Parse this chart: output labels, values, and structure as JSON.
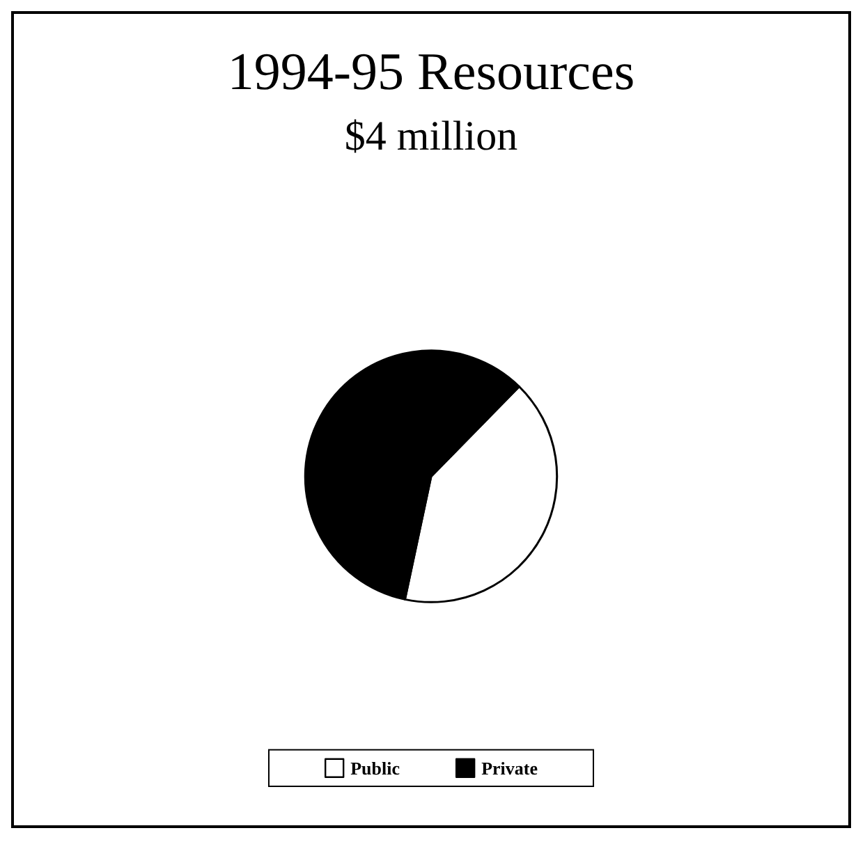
{
  "chart_data": {
    "type": "pie",
    "title": "1994-95 Resources",
    "subtitle": "$4 million",
    "categories": [
      "Public",
      "Private"
    ],
    "values": [
      41,
      59
    ],
    "colors": [
      "#ffffff",
      "#000000"
    ],
    "legend": "bottom"
  }
}
